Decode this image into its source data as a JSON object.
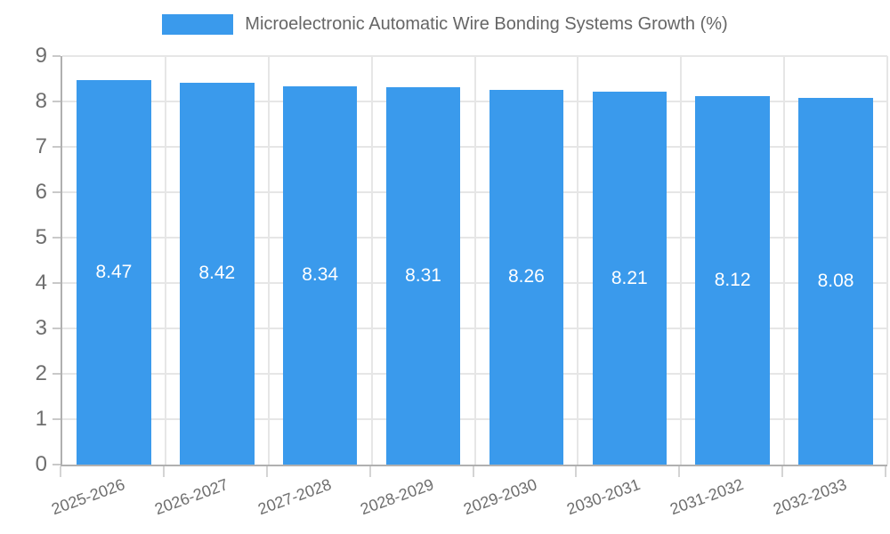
{
  "legend": {
    "label": "Microelectronic Automatic Wire Bonding Systems Growth (%)"
  },
  "colors": {
    "bar": "#3A9AEC",
    "grid": "#e6e6e6",
    "axis": "#b0b0b0",
    "tick_text": "#6e6e6e",
    "legend_text": "#666666",
    "value_label_text": "#ffffff",
    "background": "#ffffff"
  },
  "chart_data": {
    "type": "bar",
    "title": "Microelectronic Automatic Wire Bonding Systems Growth (%)",
    "categories": [
      "2025-2026",
      "2026-2027",
      "2027-2028",
      "2028-2029",
      "2029-2030",
      "2030-2031",
      "2031-2032",
      "2032-2033"
    ],
    "values": [
      8.47,
      8.42,
      8.34,
      8.31,
      8.26,
      8.21,
      8.12,
      8.08
    ],
    "data_labels": [
      "8.47",
      "8.42",
      "8.34",
      "8.31",
      "8.26",
      "8.21",
      "8.12",
      "8.08"
    ],
    "xlabel": "",
    "ylabel": "",
    "ylim": [
      0,
      9
    ],
    "y_ticks": [
      0,
      1,
      2,
      3,
      4,
      5,
      6,
      7,
      8,
      9
    ],
    "grid": true,
    "legend_position": "top",
    "bar_width_fraction": 0.72,
    "label_rotation_deg": -20
  }
}
